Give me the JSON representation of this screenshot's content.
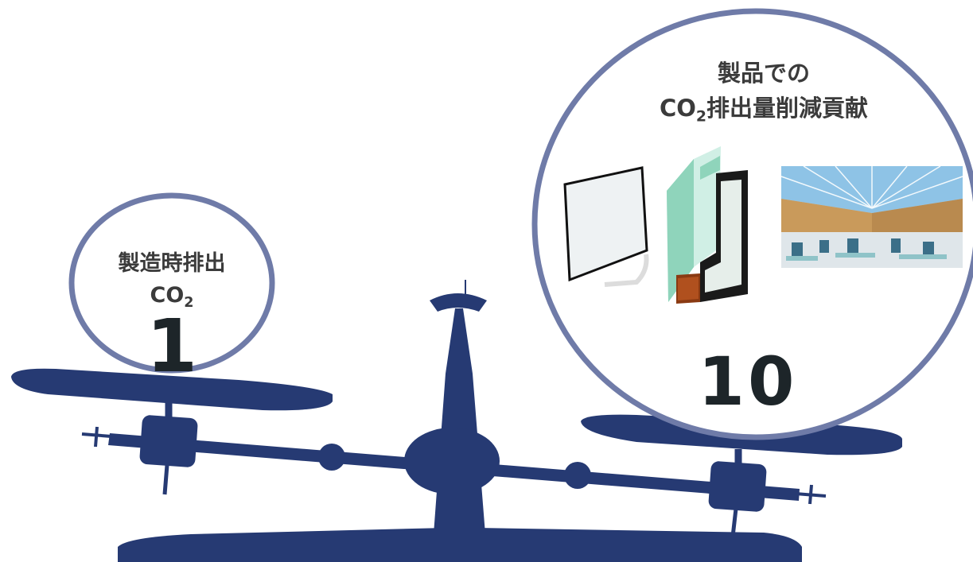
{
  "colors": {
    "scale": "#263a73",
    "circle_border": "#6f7ba8",
    "text": "#3b3b3b",
    "number": "#1d2529"
  },
  "left": {
    "title_line1": "製造時排出",
    "title_co": "CO",
    "title_sub": "2",
    "value": "1"
  },
  "right": {
    "title_line1": "製品での",
    "title_co": "CO",
    "title_sub": "2",
    "title_rest": "排出量削減貢献",
    "value": "10",
    "images": [
      "glass-pane-image",
      "double-glazing-cross-section-image",
      "glass-roof-interior-photo"
    ]
  }
}
